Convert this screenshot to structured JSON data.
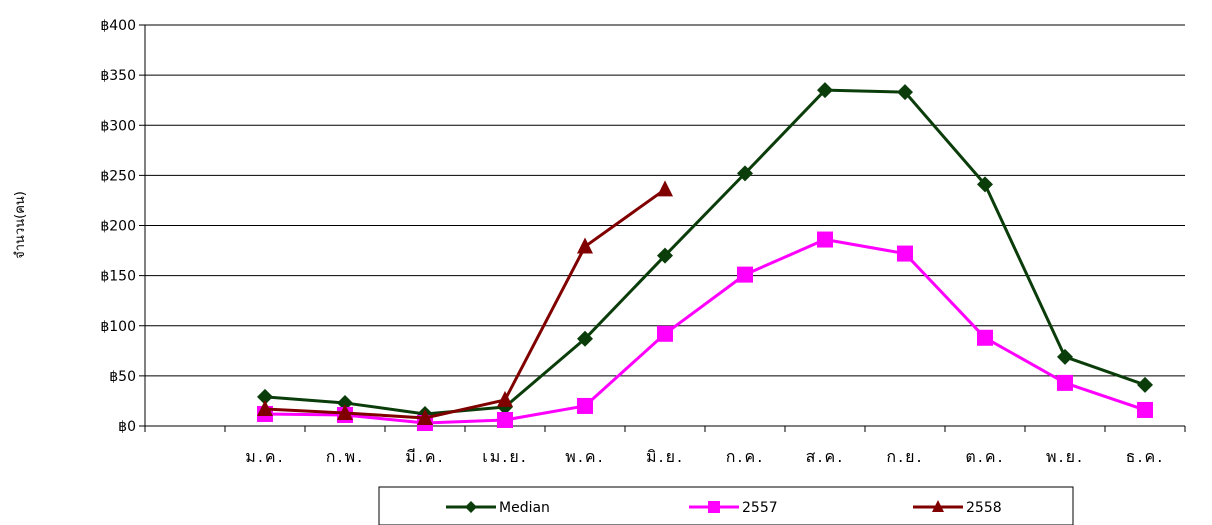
{
  "chart_data": {
    "type": "line",
    "title": "",
    "xlabel": "",
    "ylabel": "จำนวน(คน)",
    "ylim": [
      0,
      400
    ],
    "ytick_step": 50,
    "ytick_prefix": "฿",
    "grid": true,
    "legend_position": "bottom",
    "categories": [
      "ม.ค.",
      "ก.พ.",
      "มี.ค.",
      "เม.ย.",
      "พ.ค.",
      "มิ.ย.",
      "ก.ค.",
      "ส.ค.",
      "ก.ย.",
      "ต.ค.",
      "พ.ย.",
      "ธ.ค."
    ],
    "series": [
      {
        "name": "Median",
        "color": "#0b3d0b",
        "marker": "diamond",
        "values": [
          29,
          23,
          12,
          19,
          87,
          170,
          252,
          335,
          333,
          241,
          69,
          41
        ]
      },
      {
        "name": "2557",
        "color": "#ff00ff",
        "marker": "square",
        "values": [
          12,
          11,
          3,
          6,
          20,
          92,
          151,
          186,
          172,
          88,
          43,
          16
        ]
      },
      {
        "name": "2558",
        "color": "#800000",
        "marker": "triangle",
        "values": [
          17,
          13,
          8,
          26,
          179,
          236,
          null,
          null,
          null,
          null,
          null,
          null
        ]
      }
    ]
  }
}
